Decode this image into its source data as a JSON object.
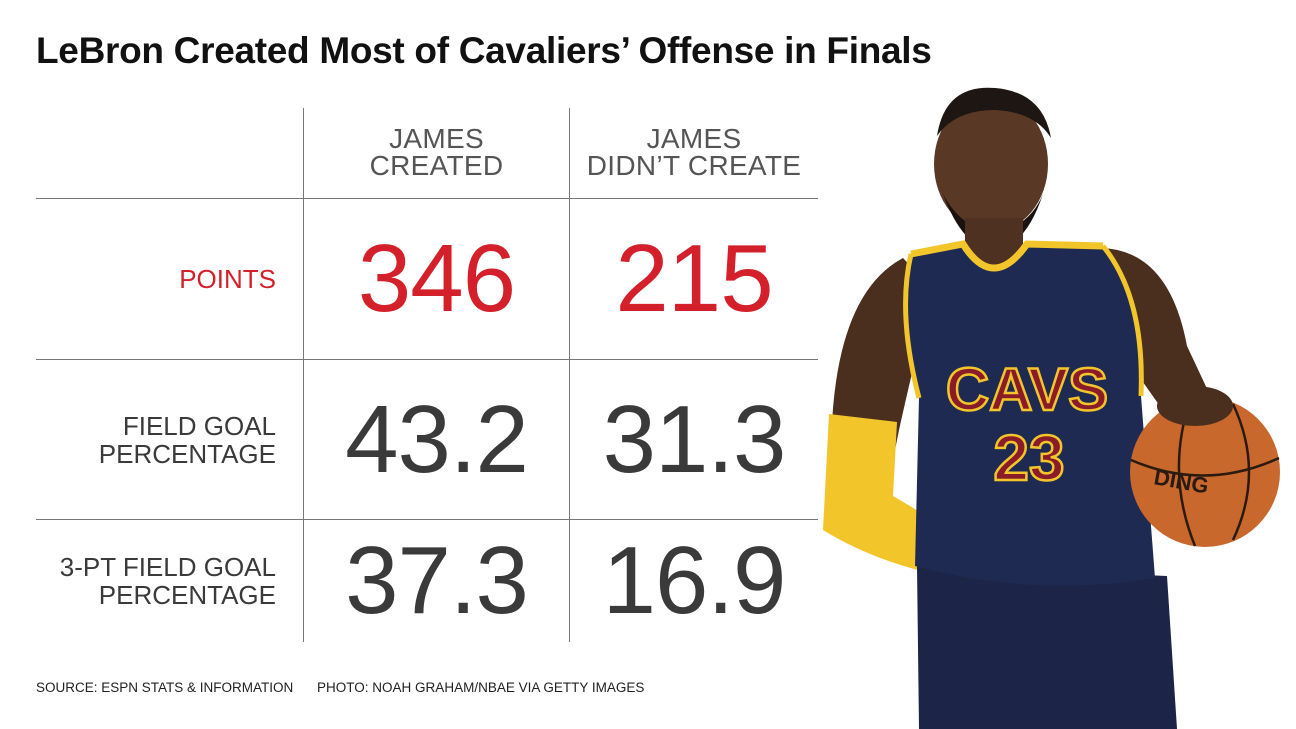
{
  "title": "LeBron Created Most of Cavaliers’ Offense in Finals",
  "colors": {
    "highlight": "#d3202a",
    "text": "#3a3a3a",
    "rule": "#777777"
  },
  "chart_data": {
    "type": "table",
    "title": "LeBron Created Most of Cavaliers’ Offense in Finals",
    "columns": [
      {
        "line1": "JAMES",
        "line2": "CREATED"
      },
      {
        "line1": "JAMES",
        "line2": "DIDN’T CREATE"
      }
    ],
    "rows": [
      {
        "line1": "POINTS",
        "line2": "",
        "values": [
          "346",
          "215"
        ],
        "highlight": true
      },
      {
        "line1": "FIELD GOAL",
        "line2": "PERCENTAGE",
        "values": [
          "43.2",
          "31.3"
        ],
        "highlight": false
      },
      {
        "line1": "3-PT FIELD GOAL",
        "line2": "PERCENTAGE",
        "values": [
          "37.3",
          "16.9"
        ],
        "highlight": false
      }
    ]
  },
  "footer": {
    "source": "SOURCE: ESPN STATS & INFORMATION",
    "photo": "PHOTO: NOAH GRAHAM/NBAE VIA GETTY IMAGES"
  },
  "photo_art": {
    "jersey_text": "CAVS",
    "jersey_number": "23",
    "ball_text": "DING",
    "icon": "basketball-player-photo"
  }
}
